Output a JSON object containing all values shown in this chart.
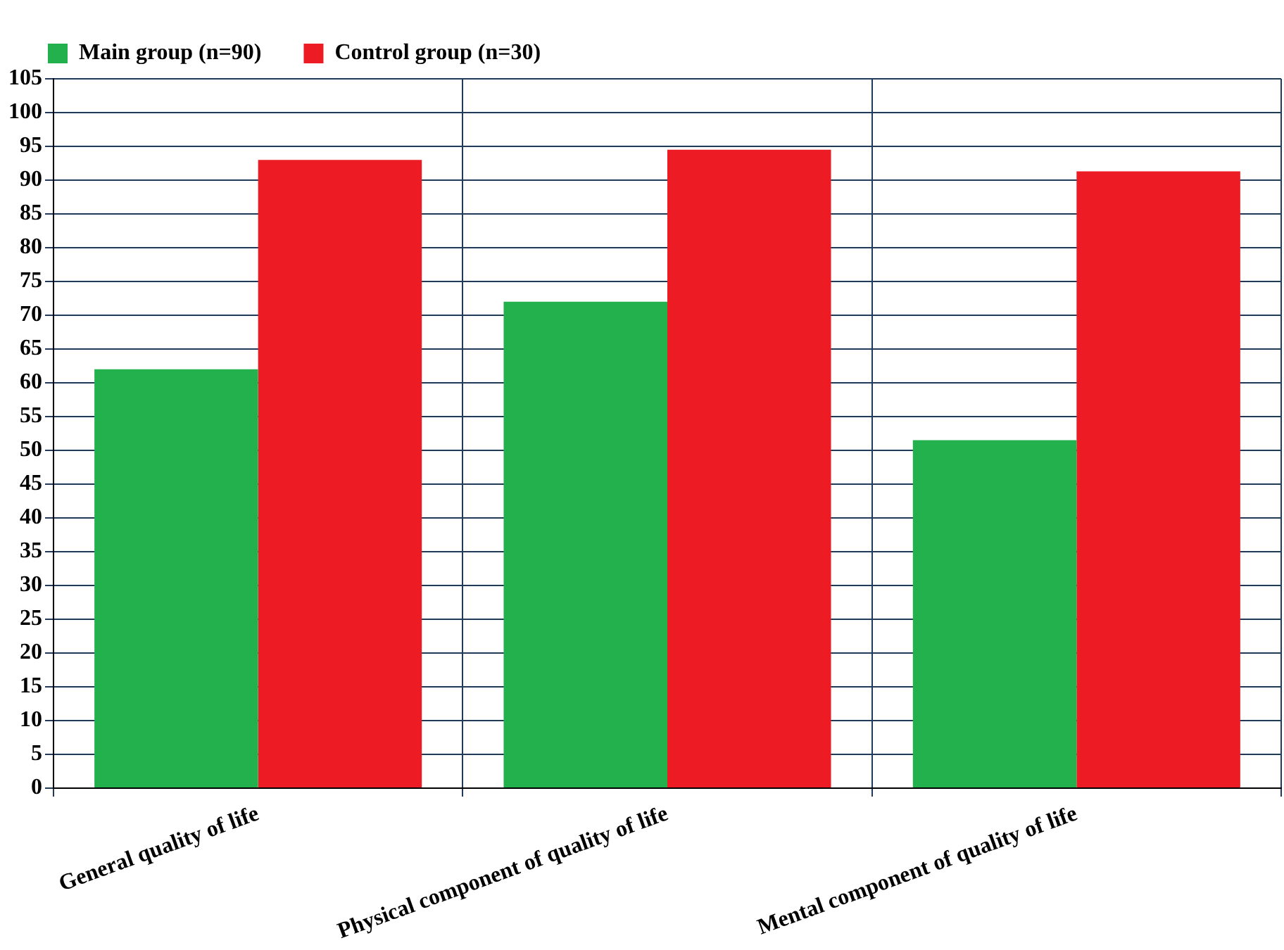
{
  "chart_data": {
    "type": "bar",
    "categories": [
      "General quality of life",
      "Physical component of quality of life",
      "Mental component of quality of life"
    ],
    "series": [
      {
        "name": "Main group (n=90)",
        "color": "#22b14c",
        "values": [
          62,
          72,
          51.5
        ]
      },
      {
        "name": "Control group (n=30)",
        "color": "#ed1c24",
        "values": [
          93,
          94.5,
          91.3
        ]
      }
    ],
    "ylim": [
      0,
      105
    ],
    "yticks": [
      0,
      5,
      10,
      15,
      20,
      25,
      30,
      35,
      40,
      45,
      50,
      55,
      60,
      65,
      70,
      75,
      80,
      85,
      90,
      95,
      100,
      105
    ],
    "grid": true,
    "legend": "top left"
  }
}
